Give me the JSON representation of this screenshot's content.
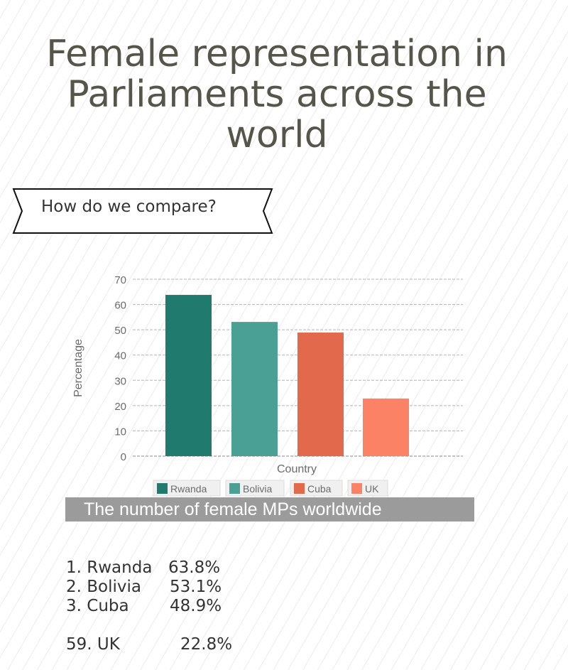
{
  "title": "Female representation in Parliaments across the world",
  "ribbon": {
    "label": "How do we compare?"
  },
  "banner": {
    "label": "The number of female MPs worldwide"
  },
  "ranking": [
    {
      "label": "1. Rwanda",
      "value": "63.8%"
    },
    {
      "label": "2. Bolivia",
      "value": "53.1%"
    },
    {
      "label": "3. Cuba",
      "value": "48.9%"
    },
    {
      "label": "59. UK",
      "value": "22.8%"
    }
  ],
  "chart_data": {
    "type": "bar",
    "title": "",
    "xlabel": "Country",
    "ylabel": "Percentage",
    "ylim": [
      0,
      70
    ],
    "yticks": [
      0,
      10,
      20,
      30,
      40,
      50,
      60,
      70
    ],
    "grid": true,
    "legend_position": "bottom",
    "series": [
      {
        "name": "Rwanda",
        "value": 63.8,
        "color": "#217a6e"
      },
      {
        "name": "Bolivia",
        "value": 53.1,
        "color": "#4aa095"
      },
      {
        "name": "Cuba",
        "value": 48.9,
        "color": "#e2694c"
      },
      {
        "name": "UK",
        "value": 22.8,
        "color": "#fb8264"
      }
    ]
  }
}
